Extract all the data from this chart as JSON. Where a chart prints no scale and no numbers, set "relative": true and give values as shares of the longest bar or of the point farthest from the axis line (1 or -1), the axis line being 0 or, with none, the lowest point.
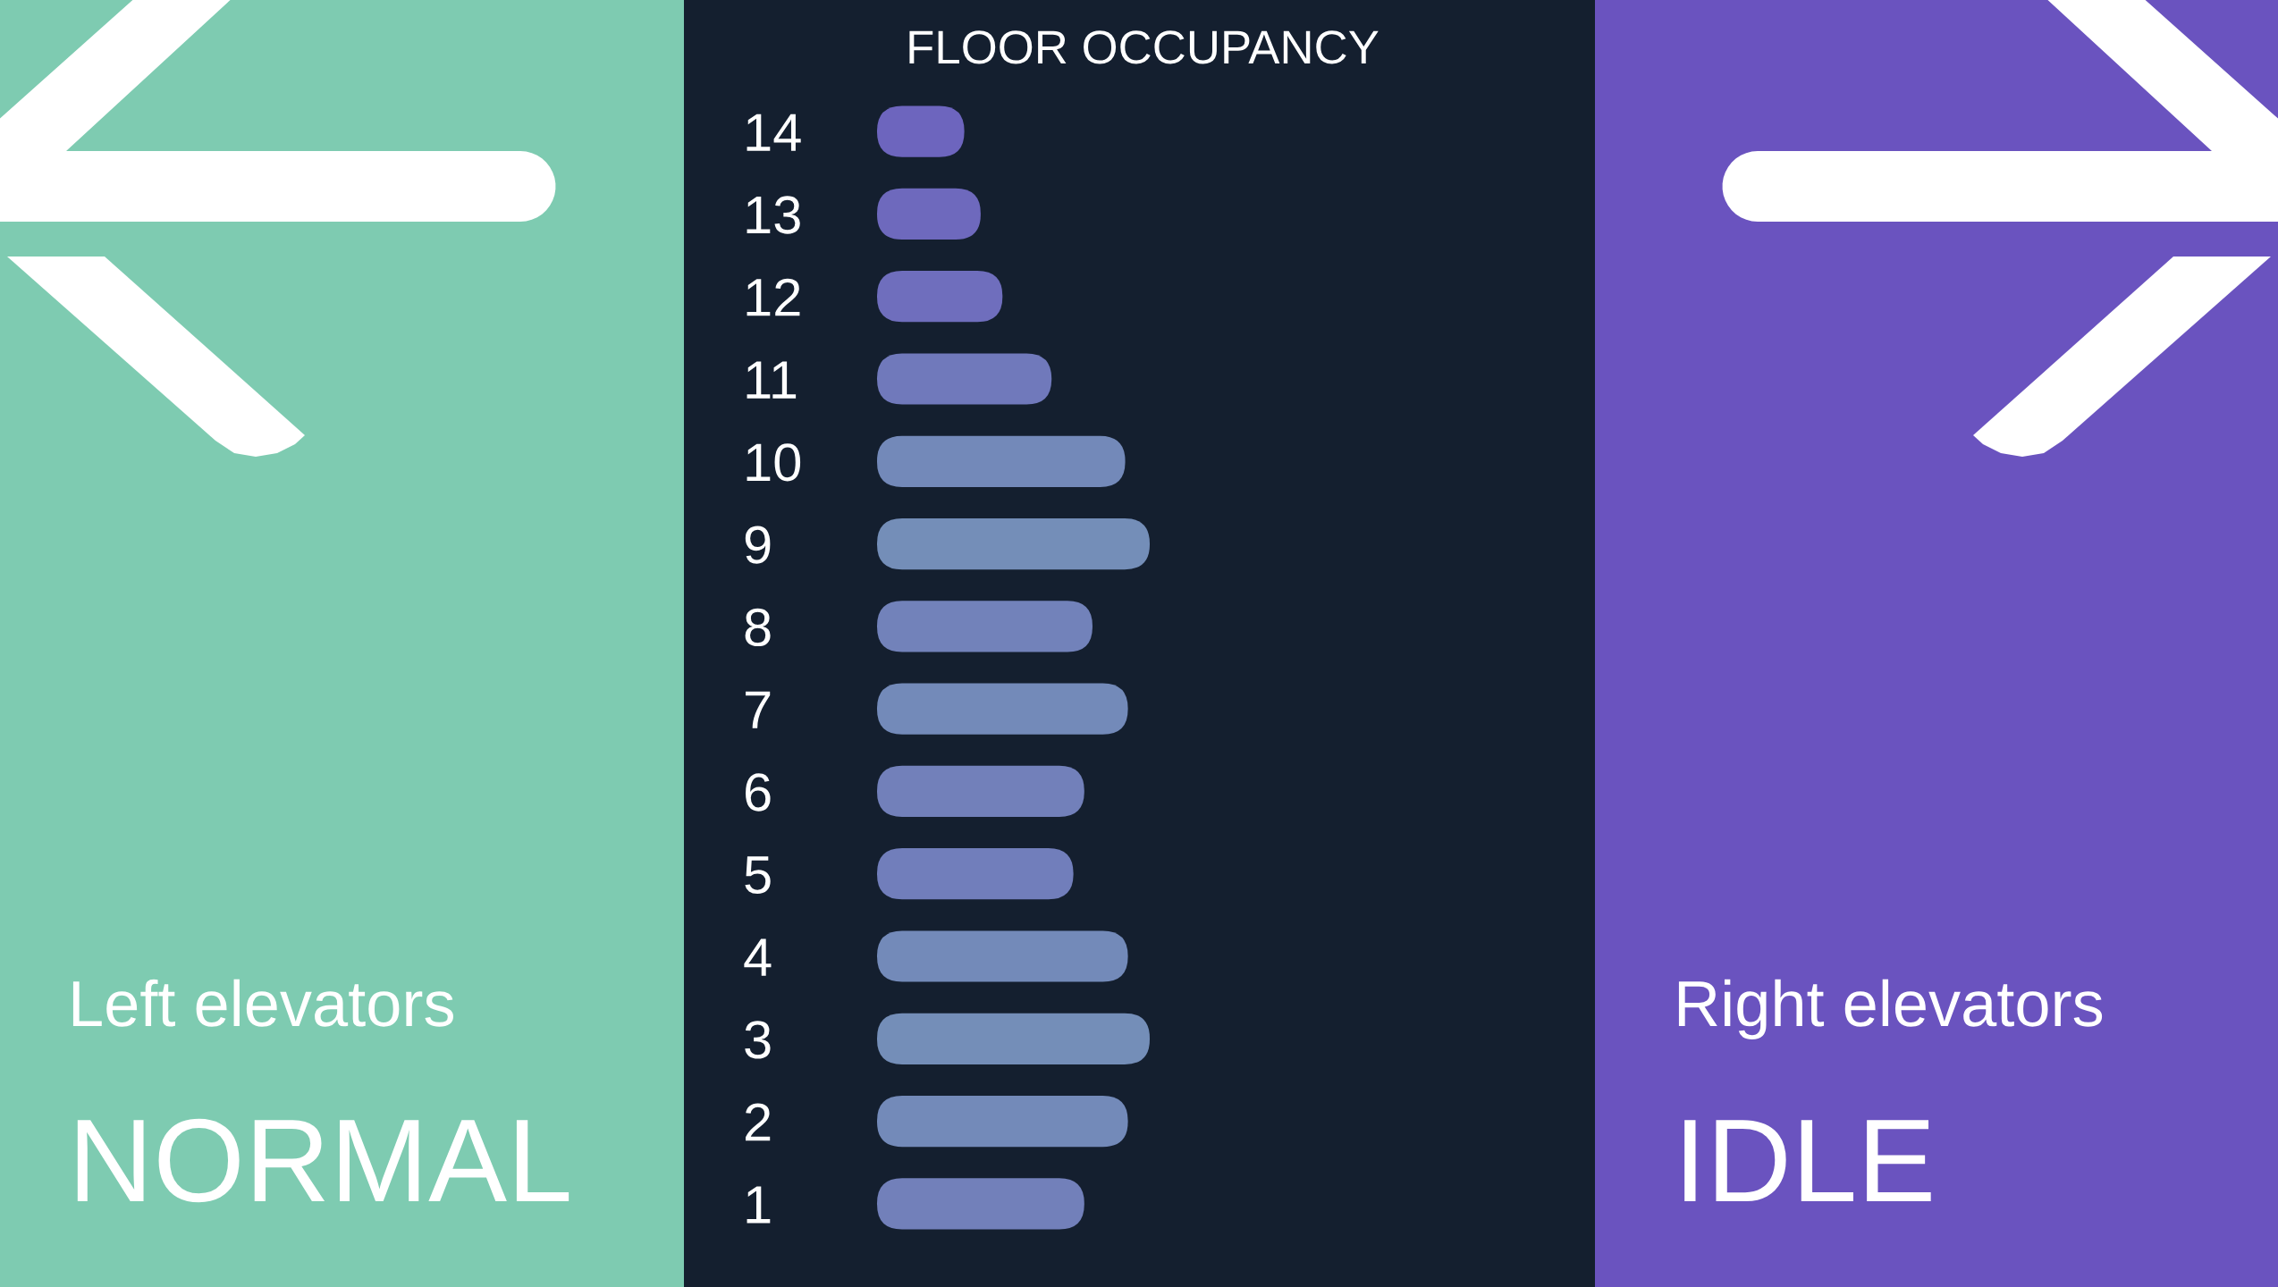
{
  "chart_data": [
    {
      "type": "other",
      "annotations": [
        "Left elevators",
        "NORMAL"
      ],
      "color": "#7ecbb1"
    },
    {
      "type": "bar",
      "title": "FLOOR OCCUPANCY",
      "orientation": "horizontal",
      "relative": true,
      "categories": [
        "14",
        "13",
        "12",
        "11",
        "10",
        "9",
        "8",
        "7",
        "6",
        "5",
        "4",
        "3",
        "2",
        "1"
      ],
      "values": [
        0.32,
        0.38,
        0.46,
        0.64,
        0.91,
        1.0,
        0.79,
        0.92,
        0.76,
        0.72,
        0.92,
        1.0,
        0.92,
        0.76
      ],
      "colors": [
        "#6d65be",
        "#6e69bd",
        "#6f6ebd",
        "#7079bb",
        "#7389b9",
        "#748eb8",
        "#7282ba",
        "#738ab9",
        "#7280ba",
        "#717ebb",
        "#738ab9",
        "#748eb8",
        "#738ab9",
        "#7280ba"
      ]
    },
    {
      "type": "other",
      "annotations": [
        "Right elevators",
        "IDLE"
      ],
      "color": "#6a53bf"
    }
  ]
}
